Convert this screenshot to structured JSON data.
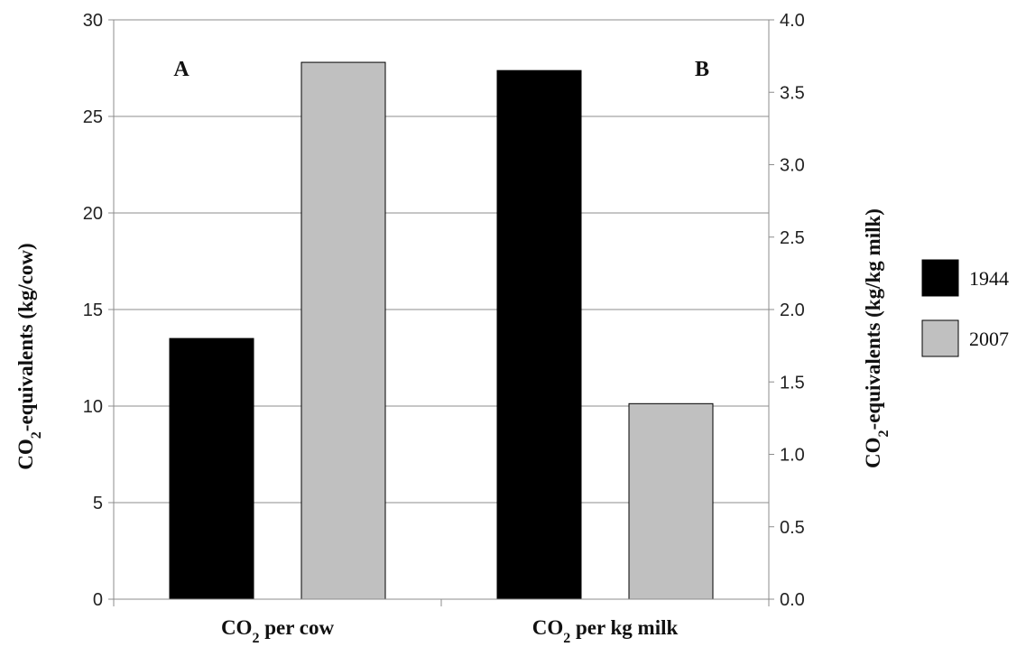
{
  "chart_data": {
    "type": "bar",
    "categories": [
      {
        "pre": "CO",
        "sub": "2",
        "post": " per cow"
      },
      {
        "pre": "CO",
        "sub": "2",
        "post": " per kg milk"
      }
    ],
    "panel_labels": [
      "A",
      "B"
    ],
    "series": [
      {
        "name": "1944",
        "color": "#000000",
        "values": [
          13.5,
          3.65
        ]
      },
      {
        "name": "2007",
        "color": "#c0c0c0",
        "values": [
          27.8,
          1.35
        ]
      }
    ],
    "series_axis": [
      {
        "category": 0,
        "axis": "left"
      },
      {
        "category": 1,
        "axis": "right"
      }
    ],
    "y_left": {
      "label_pre": "CO",
      "label_sub": "2",
      "label_post": "-equivalents (kg/cow)",
      "ylim": [
        0,
        30
      ],
      "ticks": [
        "0",
        "5",
        "10",
        "15",
        "20",
        "25",
        "30"
      ]
    },
    "y_right": {
      "label_pre": "CO",
      "label_sub": "2",
      "label_post": "-equivalents (kg/kg milk)",
      "ylim": [
        0,
        4
      ],
      "ticks": [
        "0.0",
        "0.5",
        "1.0",
        "1.5",
        "2.0",
        "2.5",
        "3.0",
        "3.5",
        "4.0"
      ]
    },
    "grid": true,
    "legend_position": "right"
  }
}
